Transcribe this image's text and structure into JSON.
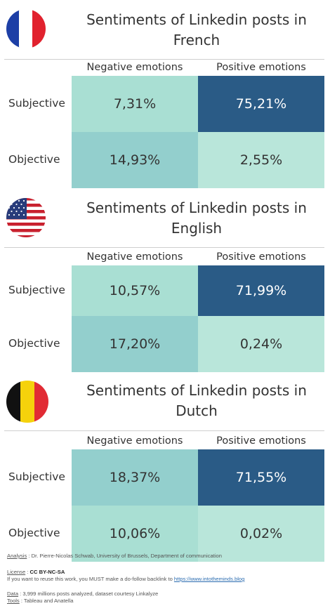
{
  "colors": {
    "low": "#a9dfd3",
    "mid_low": "#b9e6da",
    "mid": "#93cfcd",
    "high": "#2a5b86",
    "text_dark": "#333333",
    "text_light": "#ffffff"
  },
  "chart_data": [
    {
      "type": "heatmap",
      "title": "Sentiments of Linkedin posts in French",
      "title_lines": [
        "Sentiments of Linkedin posts in",
        "French"
      ],
      "flag_icon": "france-flag-icon",
      "columns": [
        "Negative emotions",
        "Positive emotions"
      ],
      "rows": [
        "Subjective",
        "Objective"
      ],
      "values": [
        [
          7.31,
          75.21
        ],
        [
          14.93,
          2.55
        ]
      ],
      "labels": [
        [
          "7,31%",
          "75,21%"
        ],
        [
          "14,93%",
          "2,55%"
        ]
      ],
      "unit": "%"
    },
    {
      "type": "heatmap",
      "title": "Sentiments of Linkedin posts in English",
      "title_lines": [
        "Sentiments of Linkedin posts in",
        "English"
      ],
      "flag_icon": "usa-flag-icon",
      "columns": [
        "Negative emotions",
        "Positive emotions"
      ],
      "rows": [
        "Subjective",
        "Objective"
      ],
      "values": [
        [
          10.57,
          71.99
        ],
        [
          17.2,
          0.24
        ]
      ],
      "labels": [
        [
          "10,57%",
          "71,99%"
        ],
        [
          "17,20%",
          "0,24%"
        ]
      ],
      "unit": "%"
    },
    {
      "type": "heatmap",
      "title": "Sentiments of Linkedin posts in Dutch",
      "title_lines": [
        "Sentiments of Linkedin posts in",
        "Dutch"
      ],
      "flag_icon": "belgium-flag-icon",
      "columns": [
        "Negative emotions",
        "Positive emotions"
      ],
      "rows": [
        "Subjective",
        "Objective"
      ],
      "values": [
        [
          18.37,
          71.55
        ],
        [
          10.06,
          0.02
        ]
      ],
      "labels": [
        [
          "18,37%",
          "71,55%"
        ],
        [
          "10,06%",
          "0,02%"
        ]
      ],
      "unit": "%"
    }
  ],
  "footer": {
    "analysis_label": "Analysis",
    "analysis_text": " : Dr. Pierre-Nicolas Schwab, University of Brussels, Department of communication",
    "license_label": "License",
    "license_sep": " : ",
    "license_value": "CC BY-NC-SA",
    "reuse_text": "If you want to reuse this work, you MUST make a do-follow backlink to ",
    "reuse_link": "https://www.intotheminds.blog",
    "data_label": "Data",
    "data_text": " : 3,999 millions posts analyzed, dataset courtesy Linkalyze",
    "tools_label": "Tools",
    "tools_text": " : Tableau and Anatella"
  }
}
